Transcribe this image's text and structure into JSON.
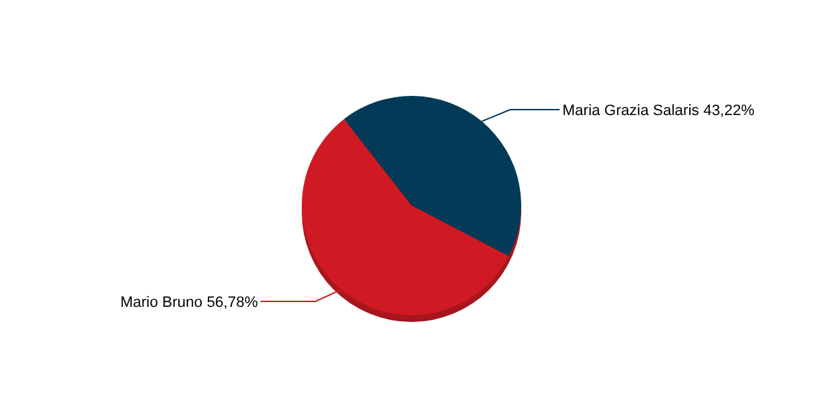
{
  "chart_data": {
    "type": "pie",
    "categories": [
      "Maria Grazia Salaris",
      "Mario Bruno"
    ],
    "values": [
      43.22,
      56.78
    ],
    "colors": [
      "#033a57",
      "#cf1a23"
    ],
    "value_labels": [
      "43,22%",
      "56,78%"
    ]
  }
}
